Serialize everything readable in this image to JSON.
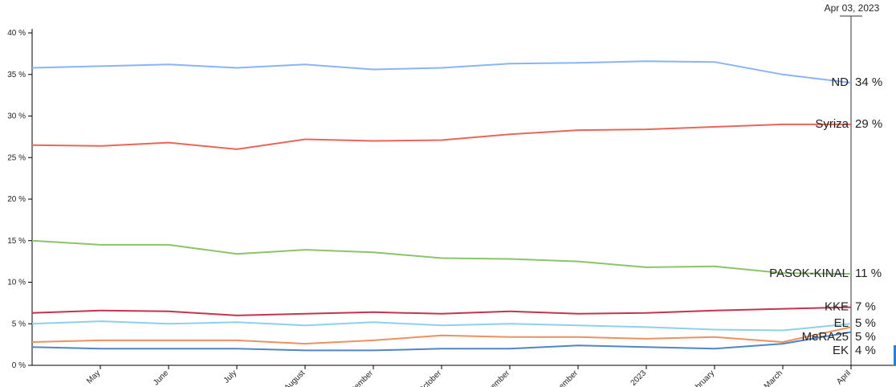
{
  "chart_data": {
    "type": "line",
    "cursor_label": "Apr 03, 2023",
    "x": [
      "2022-04",
      "2022-05",
      "2022-06",
      "2022-07",
      "2022-08",
      "2022-09",
      "2022-10",
      "2022-11",
      "2022-12",
      "2023-01",
      "2023-02",
      "2023-03",
      "2023-04"
    ],
    "xlim": [
      "2022-04",
      "2023-04"
    ],
    "xticks": [
      {
        "value": "2022-05",
        "label": "May"
      },
      {
        "value": "2022-06",
        "label": "June"
      },
      {
        "value": "2022-07",
        "label": "July"
      },
      {
        "value": "2022-08",
        "label": "August"
      },
      {
        "value": "2022-09",
        "label": "September"
      },
      {
        "value": "2022-10",
        "label": "October"
      },
      {
        "value": "2022-11",
        "label": "November"
      },
      {
        "value": "2022-12",
        "label": "December"
      },
      {
        "value": "2023-01",
        "label": "2023"
      },
      {
        "value": "2023-02",
        "label": "February"
      },
      {
        "value": "2023-03",
        "label": "March"
      },
      {
        "value": "2023-04",
        "label": "April"
      }
    ],
    "ylim": [
      0,
      40
    ],
    "yticks": [
      {
        "value": 0,
        "label": "0 %"
      },
      {
        "value": 5,
        "label": "5 %"
      },
      {
        "value": 10,
        "label": "10 %"
      },
      {
        "value": 15,
        "label": "15 %"
      },
      {
        "value": 20,
        "label": "20 %"
      },
      {
        "value": 25,
        "label": "25 %"
      },
      {
        "value": 30,
        "label": "30 %"
      },
      {
        "value": 35,
        "label": "35 %"
      },
      {
        "value": 40,
        "label": "40 %"
      }
    ],
    "series": [
      {
        "name": "ND",
        "color": "#8ab4f8",
        "values": [
          35.8,
          36.0,
          36.2,
          35.8,
          36.2,
          35.6,
          35.8,
          36.3,
          36.4,
          36.6,
          36.5,
          35.0,
          34.0
        ],
        "current": {
          "value": 34,
          "label": "34 %"
        }
      },
      {
        "name": "Syriza",
        "color": "#e8665a",
        "values": [
          26.5,
          26.4,
          26.8,
          26.0,
          27.2,
          27.0,
          27.1,
          27.8,
          28.3,
          28.4,
          28.7,
          29.0,
          29.0
        ],
        "current": {
          "value": 29,
          "label": "29 %"
        }
      },
      {
        "name": "PASOK-KINAL",
        "color": "#8dc36b",
        "values": [
          15.0,
          14.5,
          14.5,
          13.4,
          13.9,
          13.6,
          12.9,
          12.8,
          12.5,
          11.8,
          11.9,
          11.1,
          11.0
        ],
        "current": {
          "value": 11,
          "label": "11 %"
        }
      },
      {
        "name": "KKE",
        "color": "#c4344f",
        "values": [
          6.3,
          6.6,
          6.5,
          6.0,
          6.2,
          6.4,
          6.2,
          6.5,
          6.2,
          6.3,
          6.6,
          6.8,
          7.0
        ],
        "current": {
          "value": 7,
          "label": "7 %"
        }
      },
      {
        "name": "EL",
        "color": "#8fd0e8",
        "values": [
          5.0,
          5.3,
          5.0,
          5.2,
          4.8,
          5.2,
          4.8,
          5.0,
          4.8,
          4.6,
          4.3,
          4.2,
          5.0
        ],
        "current": {
          "value": 5,
          "label": "5 %"
        }
      },
      {
        "name": "MeRA25",
        "color": "#ee9060",
        "values": [
          2.8,
          3.0,
          3.0,
          3.0,
          2.6,
          3.0,
          3.6,
          3.4,
          3.4,
          3.2,
          3.4,
          2.8,
          4.6
        ],
        "current": {
          "value": 5,
          "label": "5 %"
        }
      },
      {
        "name": "EK",
        "color": "#4f86c6",
        "values": [
          2.2,
          2.0,
          2.0,
          2.0,
          1.8,
          1.8,
          2.0,
          2.0,
          2.4,
          2.2,
          2.0,
          2.6,
          4.0
        ],
        "current": {
          "value": 4,
          "label": "4 %"
        }
      }
    ]
  }
}
